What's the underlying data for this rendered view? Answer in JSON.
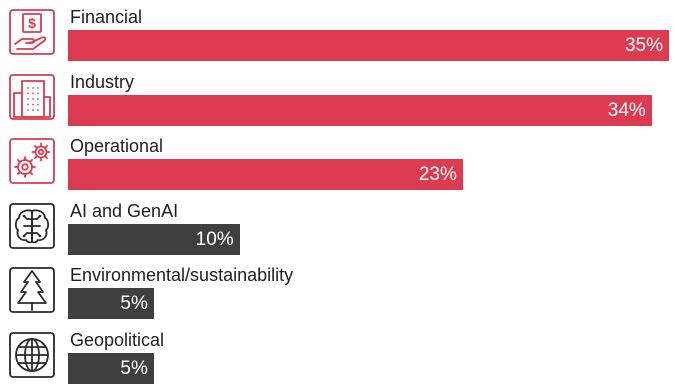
{
  "chart_data": {
    "type": "bar",
    "orientation": "horizontal",
    "categories": [
      "Financial",
      "Industry",
      "Operational",
      "AI and GenAI",
      "Environmental/sustainability",
      "Geopolitical"
    ],
    "values": [
      35,
      34,
      23,
      10,
      5,
      5
    ],
    "value_labels": [
      "35%",
      "34%",
      "23%",
      "10%",
      "5%",
      "5%"
    ],
    "icons": [
      "hand-dollar-icon",
      "building-icon",
      "gears-icon",
      "brain-chip-icon",
      "tree-icon",
      "globe-icon"
    ],
    "bar_colors": [
      "#dc3b50",
      "#dc3b50",
      "#dc3b50",
      "#3f3f3f",
      "#3f3f3f",
      "#3f3f3f"
    ],
    "icon_colors": [
      "#dc3b50",
      "#dc3b50",
      "#dc3b50",
      "#2a2a2a",
      "#2a2a2a",
      "#2a2a2a"
    ],
    "label_color": "#1e1e1e",
    "value_label_color": "#ffffff",
    "xlim": [
      0,
      35
    ],
    "grid": false,
    "legend": "none",
    "title": "",
    "xlabel": "",
    "ylabel": ""
  }
}
